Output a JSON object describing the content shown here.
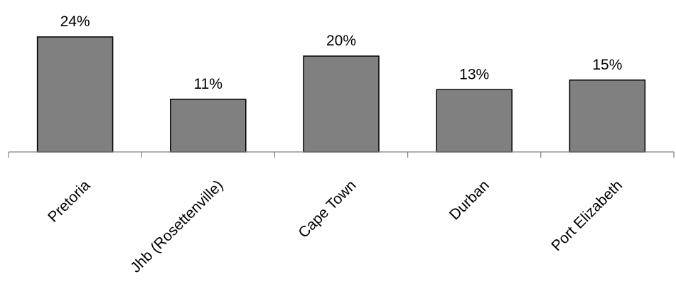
{
  "chart_data": {
    "type": "bar",
    "categories": [
      "Pretoria",
      "Jhb (Rosettenville)",
      "Cape Town",
      "Durban",
      "Port Elizabeth"
    ],
    "values": [
      24,
      11,
      20,
      13,
      15
    ],
    "data_labels": [
      "24%",
      "11%",
      "20%",
      "13%",
      "15%"
    ],
    "unit": "%",
    "ylim": [
      0,
      24
    ],
    "grid": false,
    "legend": "none",
    "bar_color": "#808080",
    "bar_edge_color": "#000000",
    "axis_color": "#7f7f7f"
  }
}
